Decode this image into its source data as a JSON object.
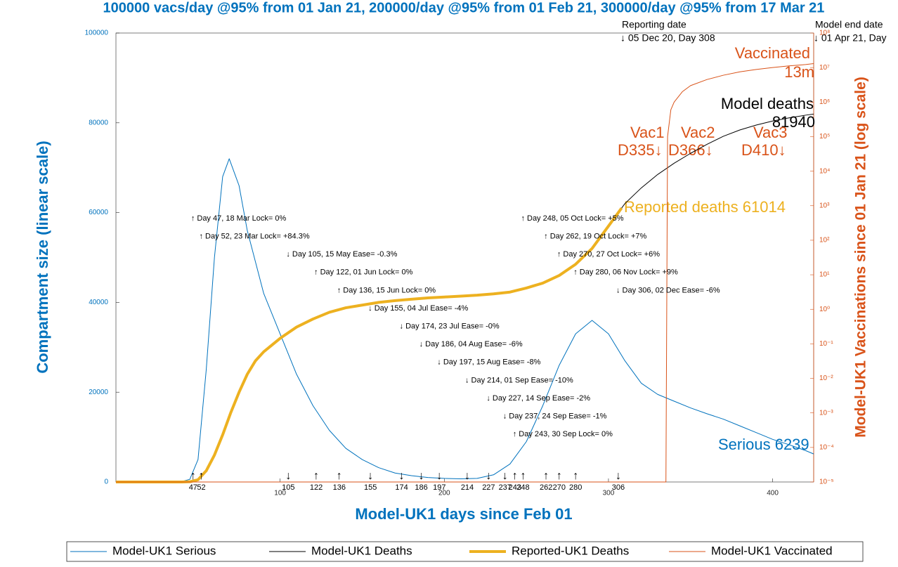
{
  "chart_data": {
    "type": "line",
    "title": "100000 vacs/day @95% from 01 Jan 21, 200000/day @95% from 01 Feb 21, 300000/day @95% from 17 Mar 21",
    "xlabel": "Model-UK1 days since Feb 01",
    "ylabel": "Compartment size (linear scale)",
    "y2label": "Model-UK1 Vaccinations since 01 Jan 21 (log scale)",
    "xlim": [
      0,
      425
    ],
    "xticks": [
      100,
      200,
      300,
      400
    ],
    "ylim": [
      0,
      100000
    ],
    "yticks": [
      0,
      20000,
      40000,
      60000,
      80000,
      100000
    ],
    "y2lim": [
      1e-05,
      100000000
    ],
    "y2scale": "log",
    "y2ticks": [
      {
        "value": 1e-05,
        "label": "10⁻⁵"
      },
      {
        "value": 0.0001,
        "label": "10⁻⁴"
      },
      {
        "value": 0.001,
        "label": "10⁻³"
      },
      {
        "value": 0.01,
        "label": "10⁻²"
      },
      {
        "value": 0.1,
        "label": "10⁻¹"
      },
      {
        "value": 1,
        "label": "10⁰"
      },
      {
        "value": 10,
        "label": "10¹"
      },
      {
        "value": 100,
        "label": "10²"
      },
      {
        "value": 1000,
        "label": "10³"
      },
      {
        "value": 10000,
        "label": "10⁴"
      },
      {
        "value": 100000,
        "label": "10⁵"
      },
      {
        "value": 1000000,
        "label": "10⁶"
      },
      {
        "value": 10000000,
        "label": "10⁷"
      },
      {
        "value": 100000000,
        "label": "10⁸"
      }
    ],
    "legend": "bottom",
    "series": [
      {
        "name": "Model-UK1 Serious",
        "color": "#0072bd",
        "width": 1,
        "x": [
          0,
          10,
          20,
          30,
          40,
          45,
          50,
          55,
          60,
          65,
          69,
          75,
          80,
          90,
          100,
          110,
          120,
          130,
          140,
          150,
          160,
          170,
          180,
          190,
          200,
          210,
          220,
          230,
          240,
          250,
          260,
          270,
          280,
          290,
          300,
          310,
          320,
          330,
          340,
          350,
          360,
          370,
          380,
          390,
          400,
          410,
          420,
          425
        ],
        "values": [
          0,
          0,
          0,
          0,
          100,
          600,
          5000,
          25000,
          50000,
          68000,
          72000,
          66000,
          56000,
          42000,
          33000,
          24000,
          17000,
          11500,
          7500,
          5000,
          3200,
          2000,
          1400,
          1000,
          800,
          700,
          800,
          1600,
          4000,
          9000,
          17000,
          26000,
          33000,
          36000,
          33000,
          27000,
          22000,
          19500,
          18000,
          16500,
          15200,
          14000,
          12500,
          11000,
          9500,
          8300,
          7000,
          6239
        ]
      },
      {
        "name": "Model-UK1 Deaths",
        "color": "#000000",
        "width": 1,
        "x": [
          0,
          40,
          45,
          50,
          55,
          60,
          65,
          70,
          75,
          80,
          85,
          90,
          100,
          110,
          120,
          130,
          140,
          150,
          160,
          170,
          180,
          190,
          200,
          210,
          220,
          230,
          240,
          250,
          260,
          270,
          280,
          290,
          300,
          310,
          320,
          330,
          340,
          350,
          360,
          370,
          380,
          390,
          400,
          410,
          420,
          425
        ],
        "values": [
          0,
          0,
          50,
          500,
          2500,
          6000,
          10500,
          15500,
          20000,
          24000,
          27000,
          29000,
          32000,
          34500,
          36300,
          37800,
          38800,
          39400,
          40000,
          40400,
          40700,
          41000,
          41200,
          41400,
          41600,
          41900,
          42300,
          43200,
          44300,
          46000,
          48500,
          52000,
          57000,
          62000,
          65500,
          68500,
          71000,
          73200,
          75200,
          77000,
          78400,
          79500,
          80400,
          81100,
          81700,
          81940
        ]
      },
      {
        "name": "Reported-UK1 Deaths",
        "color": "#edb120",
        "width": 4,
        "x": [
          0,
          40,
          45,
          50,
          55,
          60,
          65,
          70,
          75,
          80,
          85,
          90,
          100,
          110,
          120,
          130,
          140,
          150,
          160,
          170,
          180,
          190,
          200,
          210,
          220,
          230,
          240,
          250,
          260,
          270,
          280,
          290,
          300,
          308
        ],
        "values": [
          0,
          0,
          50,
          500,
          2500,
          6000,
          10500,
          15500,
          20000,
          24000,
          27000,
          29000,
          32000,
          34500,
          36300,
          37800,
          38800,
          39400,
          40000,
          40400,
          40700,
          41000,
          41200,
          41400,
          41600,
          41900,
          42300,
          43200,
          44300,
          46000,
          48500,
          52000,
          57000,
          61014
        ]
      },
      {
        "name": "Model-UK1 Vaccinated",
        "color": "#d95319",
        "width": 1,
        "axis": "y2",
        "x": [
          0,
          335,
          336,
          338,
          340,
          345,
          350,
          360,
          370,
          380,
          390,
          400,
          410,
          420,
          425
        ],
        "values": [
          1e-05,
          1e-05,
          100000,
          600000,
          1000000,
          2000000,
          3000000,
          4500000,
          6000000,
          7500000,
          8800000,
          10000000,
          11200000,
          12200000,
          13000000
        ]
      }
    ],
    "events": {
      "days": [
        47,
        52,
        105,
        122,
        136,
        155,
        174,
        186,
        197,
        214,
        227,
        237,
        243,
        248,
        262,
        270,
        280,
        306
      ],
      "arrows": [
        "↑",
        "↑",
        "↓",
        "↑",
        "↑",
        "↓",
        "↓",
        "↓",
        "↓",
        "↓",
        "↓",
        "↓",
        "↑",
        "↑",
        "↑",
        "↑",
        "↑",
        "↓"
      ],
      "labels": [
        "↑ Day 47, 18 Mar Lock= 0%",
        "↑ Day 52, 23 Mar Lock= +84.3%",
        "↓ Day 105, 15 May Ease= -0.3%",
        "↑ Day 122, 01 Jun Lock= 0%",
        "↑ Day 136, 15 Jun Lock= 0%",
        "↓ Day 155, 04 Jul Ease= -4%",
        "↓ Day 174, 23 Jul Ease= -0%",
        "↓ Day 186, 04 Aug Ease= -6%",
        "↓ Day 197, 15 Aug Ease= -8%",
        "↓ Day 214, 01 Sep Ease= -10%",
        "↓ Day 227, 14 Sep Ease= -2%",
        "↓ Day 237, 24 Sep Ease= -1%",
        "↑ Day 243, 30 Sep Lock= 0%",
        "↑ Day 248, 05 Oct Lock= +5%",
        "↑ Day 262, 19 Oct Lock= +7%",
        "↑ Day 270, 27 Oct Lock= +6%",
        "↑ Day 280, 06 Nov Lock= +9%",
        "↓ Day 306, 02 Dec Ease= -6%"
      ]
    },
    "annotations": {
      "reporting_title": "Reporting date",
      "reporting_date": "↓ 05 Dec 20, Day 308",
      "end_title": "Model end date",
      "end_date": "↓ 01 Apr 21, Day",
      "vaccinated": "Vaccinated",
      "vaccinated_total": "13m",
      "model_deaths": "Model deaths",
      "model_deaths_total": "81940",
      "vac1": "Vac1",
      "vac1_day": "D335↓",
      "vac2": "Vac2",
      "vac2_day": "D366↓",
      "vac3": "Vac3",
      "vac3_day": "D410↓",
      "reported": "Reported deaths 61014",
      "serious": "Serious 6239"
    }
  }
}
